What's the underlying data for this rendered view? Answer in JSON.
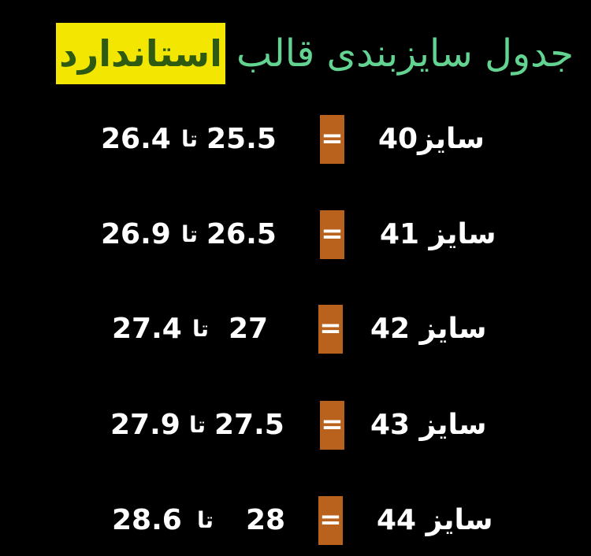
{
  "title": {
    "main": "جدول سایزبندی قالب",
    "highlight": "استاندارد"
  },
  "colors": {
    "background": "#000000",
    "title": "#63d391",
    "highlight_bg": "#f3e600",
    "highlight_text": "#2f5a12",
    "equals_box": "#b8621d"
  },
  "equals": "=",
  "rows": [
    {
      "size": "سایز40",
      "from": "25.5",
      "to_word": "تا",
      "to": "26.4"
    },
    {
      "size": "سایز 41",
      "from": "26.5",
      "to_word": "تا",
      "to": "26.9"
    },
    {
      "size": "سایز 42",
      "from": "27",
      "to_word": "تا",
      "to": "27.4"
    },
    {
      "size": "سایز 43",
      "from": "27.5",
      "to_word": "تا",
      "to": "27.9"
    },
    {
      "size": "سایز 44",
      "from": "28",
      "to_word": "تا",
      "to": "28.6"
    }
  ]
}
